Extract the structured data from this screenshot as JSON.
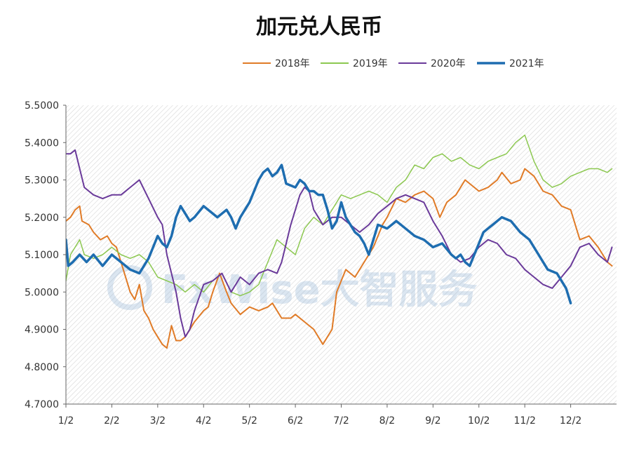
{
  "chart_data": {
    "type": "line",
    "title": "加元兑人民币",
    "x_ticks": [
      "1/2",
      "2/2",
      "3/2",
      "4/2",
      "5/2",
      "6/2",
      "7/2",
      "8/2",
      "9/2",
      "10/2",
      "11/2",
      "12/2"
    ],
    "y_ticks": [
      "4.7000",
      "4.8000",
      "4.9000",
      "5.0000",
      "5.1000",
      "5.2000",
      "5.3000",
      "5.4000",
      "5.5000"
    ],
    "ylim": [
      4.7,
      5.5
    ],
    "xlim": [
      1,
      13
    ],
    "x_unit": "month (1/2 = 1, 2/2 = 2, ...)",
    "legend_position": "top-right",
    "grid": "background hatch, no gridlines",
    "series": [
      {
        "name": "2018年",
        "color": "#E07B27",
        "stroke": 2,
        "x": [
          1,
          1.1,
          1.2,
          1.3,
          1.35,
          1.5,
          1.6,
          1.75,
          1.9,
          2.0,
          2.1,
          2.2,
          2.4,
          2.5,
          2.6,
          2.7,
          2.8,
          2.9,
          3.0,
          3.1,
          3.2,
          3.3,
          3.4,
          3.5,
          3.6,
          3.8,
          4.0,
          4.1,
          4.2,
          4.35,
          4.5,
          4.6,
          4.8,
          5.0,
          5.2,
          5.4,
          5.5,
          5.7,
          5.9,
          6.0,
          6.2,
          6.4,
          6.6,
          6.8,
          6.9,
          7.1,
          7.3,
          7.5,
          7.7,
          7.9,
          8.0,
          8.2,
          8.4,
          8.6,
          8.8,
          9.0,
          9.15,
          9.3,
          9.5,
          9.7,
          9.9,
          10.0,
          10.2,
          10.4,
          10.5,
          10.7,
          10.9,
          11.0,
          11.2,
          11.4,
          11.6,
          11.8,
          12.0,
          12.2,
          12.4,
          12.6,
          12.8,
          12.9
        ],
        "y": [
          5.19,
          5.2,
          5.22,
          5.23,
          5.19,
          5.18,
          5.16,
          5.14,
          5.15,
          5.13,
          5.12,
          5.08,
          5.0,
          4.98,
          5.02,
          4.95,
          4.93,
          4.9,
          4.88,
          4.86,
          4.85,
          4.91,
          4.87,
          4.87,
          4.88,
          4.92,
          4.95,
          4.96,
          5.0,
          5.05,
          5.0,
          4.97,
          4.94,
          4.96,
          4.95,
          4.96,
          4.97,
          4.93,
          4.93,
          4.94,
          4.92,
          4.9,
          4.86,
          4.9,
          5.0,
          5.06,
          5.04,
          5.08,
          5.12,
          5.18,
          5.2,
          5.25,
          5.24,
          5.26,
          5.27,
          5.25,
          5.2,
          5.24,
          5.26,
          5.3,
          5.28,
          5.27,
          5.28,
          5.3,
          5.32,
          5.29,
          5.3,
          5.33,
          5.31,
          5.27,
          5.26,
          5.23,
          5.22,
          5.14,
          5.15,
          5.12,
          5.08,
          5.07
        ]
      },
      {
        "name": "2019年",
        "color": "#8CC850",
        "stroke": 1.5,
        "x": [
          1,
          1.1,
          1.2,
          1.3,
          1.4,
          1.6,
          1.8,
          2.0,
          2.2,
          2.4,
          2.6,
          2.8,
          3.0,
          3.2,
          3.4,
          3.6,
          3.8,
          4.0,
          4.2,
          4.4,
          4.6,
          4.8,
          5.0,
          5.2,
          5.4,
          5.6,
          5.8,
          6.0,
          6.2,
          6.4,
          6.6,
          6.8,
          7.0,
          7.2,
          7.4,
          7.6,
          7.8,
          8.0,
          8.2,
          8.4,
          8.6,
          8.8,
          9.0,
          9.2,
          9.4,
          9.6,
          9.8,
          10.0,
          10.2,
          10.4,
          10.6,
          10.8,
          11.0,
          11.2,
          11.4,
          11.6,
          11.8,
          12.0,
          12.2,
          12.4,
          12.6,
          12.8,
          12.9
        ],
        "y": [
          5.03,
          5.1,
          5.12,
          5.14,
          5.1,
          5.09,
          5.1,
          5.12,
          5.1,
          5.09,
          5.1,
          5.08,
          5.04,
          5.03,
          5.02,
          5.0,
          5.02,
          5.0,
          5.03,
          5.05,
          5.0,
          4.99,
          5.0,
          5.02,
          5.08,
          5.14,
          5.12,
          5.1,
          5.17,
          5.2,
          5.18,
          5.22,
          5.26,
          5.25,
          5.26,
          5.27,
          5.26,
          5.24,
          5.28,
          5.3,
          5.34,
          5.33,
          5.36,
          5.37,
          5.35,
          5.36,
          5.34,
          5.33,
          5.35,
          5.36,
          5.37,
          5.4,
          5.42,
          5.35,
          5.3,
          5.28,
          5.29,
          5.31,
          5.32,
          5.33,
          5.33,
          5.32,
          5.33
        ]
      },
      {
        "name": "2020年",
        "color": "#6A3A9A",
        "stroke": 2,
        "x": [
          1,
          1.1,
          1.2,
          1.3,
          1.4,
          1.5,
          1.6,
          1.8,
          2.0,
          2.2,
          2.4,
          2.6,
          2.8,
          3.0,
          3.1,
          3.2,
          3.4,
          3.5,
          3.6,
          3.7,
          3.8,
          4.0,
          4.2,
          4.4,
          4.6,
          4.8,
          5.0,
          5.2,
          5.4,
          5.6,
          5.7,
          5.8,
          5.9,
          6.0,
          6.1,
          6.2,
          6.3,
          6.4,
          6.5,
          6.6,
          6.8,
          7.0,
          7.2,
          7.4,
          7.6,
          7.8,
          8.0,
          8.2,
          8.4,
          8.6,
          8.8,
          9.0,
          9.2,
          9.4,
          9.6,
          9.8,
          10.0,
          10.2,
          10.4,
          10.6,
          10.8,
          11.0,
          11.2,
          11.4,
          11.6,
          11.8,
          12.0,
          12.2,
          12.4,
          12.6,
          12.8,
          12.9
        ],
        "y": [
          5.37,
          5.37,
          5.38,
          5.33,
          5.28,
          5.27,
          5.26,
          5.25,
          5.26,
          5.26,
          5.28,
          5.3,
          5.25,
          5.2,
          5.18,
          5.1,
          5.0,
          4.93,
          4.88,
          4.9,
          4.95,
          5.02,
          5.03,
          5.05,
          5.0,
          5.04,
          5.02,
          5.05,
          5.06,
          5.05,
          5.08,
          5.13,
          5.18,
          5.22,
          5.26,
          5.28,
          5.27,
          5.22,
          5.2,
          5.18,
          5.2,
          5.2,
          5.18,
          5.16,
          5.18,
          5.21,
          5.23,
          5.25,
          5.26,
          5.25,
          5.24,
          5.19,
          5.15,
          5.1,
          5.08,
          5.09,
          5.12,
          5.14,
          5.13,
          5.1,
          5.09,
          5.06,
          5.04,
          5.02,
          5.01,
          5.04,
          5.07,
          5.12,
          5.13,
          5.1,
          5.08,
          5.12
        ]
      },
      {
        "name": "2021年",
        "color": "#1E6DB0",
        "stroke": 3.5,
        "x": [
          1,
          1.05,
          1.15,
          1.3,
          1.45,
          1.6,
          1.8,
          2.0,
          2.2,
          2.4,
          2.6,
          2.8,
          2.9,
          3.0,
          3.1,
          3.2,
          3.3,
          3.4,
          3.5,
          3.6,
          3.7,
          3.8,
          4.0,
          4.1,
          4.2,
          4.3,
          4.5,
          4.6,
          4.7,
          4.8,
          5.0,
          5.2,
          5.3,
          5.4,
          5.5,
          5.6,
          5.7,
          5.8,
          6.0,
          6.1,
          6.2,
          6.3,
          6.4,
          6.5,
          6.6,
          6.7,
          6.8,
          6.9,
          7.0,
          7.1,
          7.2,
          7.3,
          7.4,
          7.5,
          7.6,
          7.8,
          8.0,
          8.2,
          8.4,
          8.6,
          8.8,
          9.0,
          9.2,
          9.4,
          9.5,
          9.6,
          9.7,
          9.8,
          9.9,
          10.0,
          10.1,
          10.2,
          10.3,
          10.5,
          10.7,
          10.9,
          11.1,
          11.3,
          11.5,
          11.7,
          11.8,
          11.9,
          12.0
        ],
        "y": [
          5.14,
          5.07,
          5.08,
          5.1,
          5.08,
          5.1,
          5.07,
          5.1,
          5.08,
          5.06,
          5.05,
          5.09,
          5.12,
          5.15,
          5.13,
          5.12,
          5.15,
          5.2,
          5.23,
          5.21,
          5.19,
          5.2,
          5.23,
          5.22,
          5.21,
          5.2,
          5.22,
          5.2,
          5.17,
          5.2,
          5.24,
          5.3,
          5.32,
          5.33,
          5.31,
          5.32,
          5.34,
          5.29,
          5.28,
          5.3,
          5.29,
          5.27,
          5.27,
          5.26,
          5.26,
          5.22,
          5.17,
          5.19,
          5.24,
          5.2,
          5.18,
          5.16,
          5.15,
          5.13,
          5.1,
          5.18,
          5.17,
          5.19,
          5.17,
          5.15,
          5.14,
          5.12,
          5.13,
          5.1,
          5.09,
          5.1,
          5.08,
          5.07,
          5.1,
          5.13,
          5.16,
          5.17,
          5.18,
          5.2,
          5.19,
          5.16,
          5.14,
          5.1,
          5.06,
          5.05,
          5.03,
          5.01,
          4.97
        ]
      }
    ]
  },
  "watermark": {
    "text": "FxWise大智服务",
    "color": "#9AB8D8"
  },
  "styling": {
    "axis_color": "#555555",
    "hatch_color": "#d6d6d6",
    "title_color": "#111111"
  }
}
